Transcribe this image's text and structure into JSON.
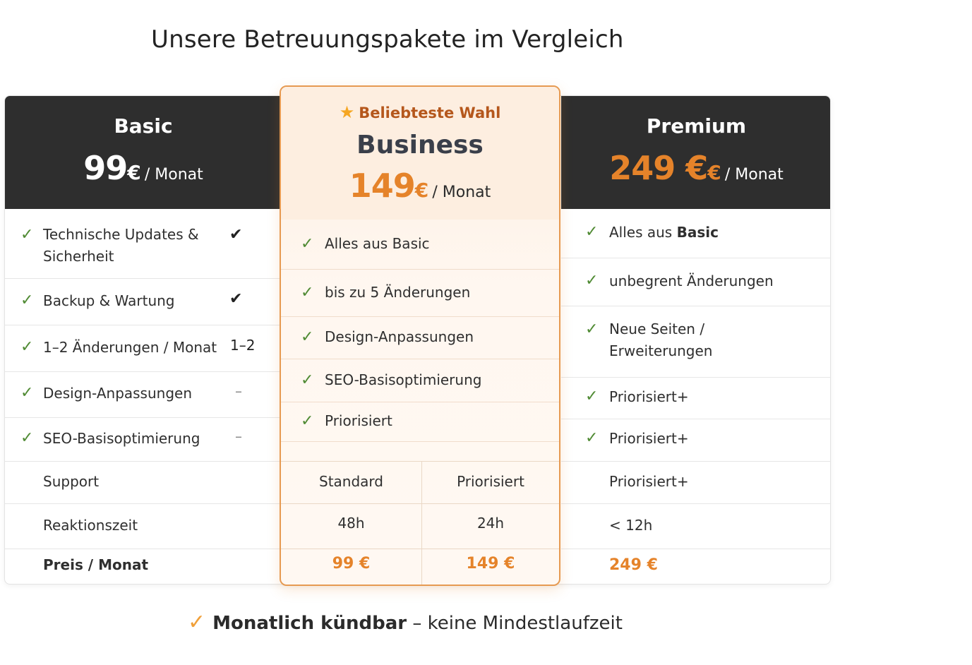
{
  "title": "Unsere Betreuungspakete im Vergleich",
  "basic": {
    "name": "Basic",
    "price": "99",
    "currency": "€",
    "per": "/ Monat",
    "rows": [
      {
        "label1": "Technische Updates &",
        "label2": "Sicherheit",
        "value": "✔"
      },
      {
        "label1": "Backup & Wartung",
        "value": "✔"
      },
      {
        "label1": "1–2 Änderungen / Monat",
        "value": "1–2"
      },
      {
        "label1": "Design-Anpassungen",
        "value": "–"
      },
      {
        "label1": "SEO-Basisoptimierung",
        "value": "–"
      }
    ],
    "support_label": "Support",
    "reaction_label": "Reaktionszeit",
    "price_label": "Preis / Monat"
  },
  "business": {
    "badge": "Beliebteste Wahl",
    "name": "Business",
    "price": "149",
    "currency": "€",
    "per": "/ Monat",
    "features": [
      "Alles aus Basic",
      "bis zu 5 Änderungen",
      "Design-Anpassungen",
      "SEO-Basisoptimierung",
      "Priorisiert"
    ],
    "support": [
      "Standard",
      "Priorisiert"
    ],
    "reaction": [
      "48h",
      "24h"
    ],
    "prices": [
      "99 €",
      "149 €"
    ]
  },
  "premium": {
    "name": "Premium",
    "price": "249 €",
    "currency": "€",
    "per": "/ Monat",
    "features": [
      {
        "pre": "Alles aus ",
        "bold": "Basic"
      },
      {
        "label": "unbegrent Änderungen"
      },
      {
        "label1": "Neue Seiten /",
        "label2": "Erweiterungen"
      },
      {
        "label": "Priorisiert+"
      },
      {
        "label": "Priorisiert+"
      }
    ],
    "support": "Priorisiert+",
    "reaction": "< 12h"
  },
  "footer": {
    "bold": "Monatlich kündbar",
    "rest": " – keine Mindestlaufzeit"
  },
  "icons": {
    "check": "check-icon",
    "star": "star-icon"
  },
  "colors": {
    "accent": "#e5832a",
    "dark_header": "#2e2e2e",
    "check_green": "#4f8a33",
    "highlight_border": "#e69a52"
  }
}
